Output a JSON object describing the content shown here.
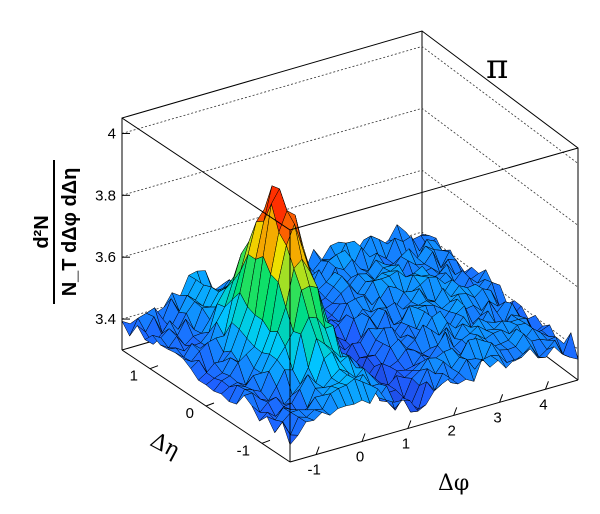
{
  "chart_data": {
    "type": "surface3d",
    "panel_label": "π",
    "xlabel": "Δφ",
    "ylabel": "Δη",
    "zlabel_numerator": "d²N",
    "zlabel_denominator": "N_T dΔφ dΔη",
    "x_ticks": [
      "-1",
      "0",
      "1",
      "2",
      "3",
      "4"
    ],
    "y_ticks": [
      "1",
      "0",
      "-1"
    ],
    "z_ticks": [
      "3.4",
      "3.6",
      "3.8",
      "4"
    ],
    "xlim": [
      -1.57,
      4.71
    ],
    "ylim": [
      -1.5,
      1.5
    ],
    "zlim": [
      3.3,
      4.05
    ],
    "grid": true,
    "peak": {
      "x": 0,
      "y": 0,
      "z": 3.87
    },
    "near_side_ridge_width_phi": 0.35,
    "near_side_ridge_width_eta": 0.45,
    "baseline": 3.39,
    "away_side": {
      "x": 3.14,
      "z": 3.43,
      "width_phi": 1.0
    },
    "colors": [
      "#1a0a8c",
      "#1f5fff",
      "#00c8ff",
      "#00e070",
      "#f0e000",
      "#ff3000"
    ]
  }
}
